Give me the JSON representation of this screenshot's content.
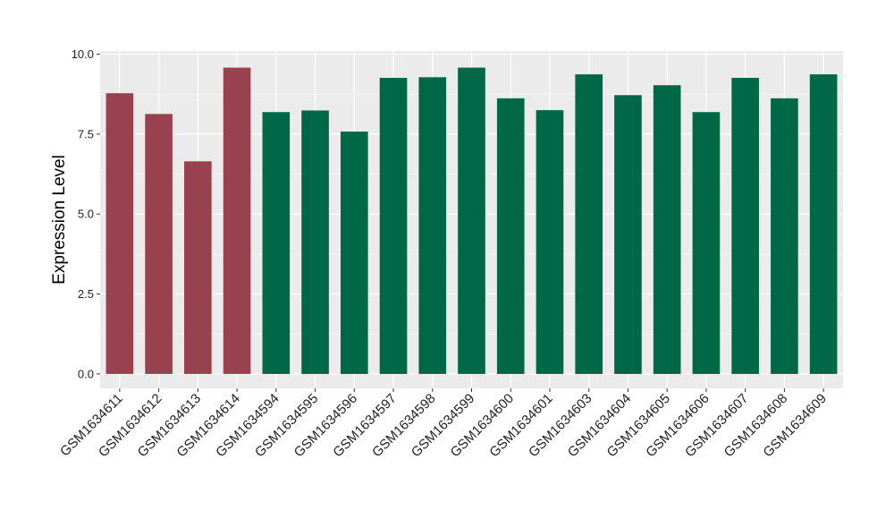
{
  "chart_data": {
    "type": "bar",
    "title": "",
    "xlabel": "",
    "ylabel": "Expression Level",
    "ylim": [
      -0.45,
      10.1
    ],
    "yticks": [
      0.0,
      2.5,
      5.0,
      7.5,
      10.0
    ],
    "ytick_labels": [
      "0.0",
      "2.5",
      "5.0",
      "7.5",
      "10.0"
    ],
    "grid": true,
    "legend": "none",
    "background_color": "#ebebeb",
    "categories": [
      "GSM1634611",
      "GSM1634612",
      "GSM1634613",
      "GSM1634614",
      "GSM1634594",
      "GSM1634595",
      "GSM1634596",
      "GSM1634597",
      "GSM1634598",
      "GSM1634599",
      "GSM1634600",
      "GSM1634601",
      "GSM1634603",
      "GSM1634604",
      "GSM1634605",
      "GSM1634606",
      "GSM1634607",
      "GSM1634608",
      "GSM1634609"
    ],
    "values": [
      8.78,
      8.13,
      6.65,
      9.58,
      8.19,
      8.24,
      7.58,
      9.26,
      9.28,
      9.58,
      8.62,
      8.25,
      9.37,
      8.72,
      9.03,
      8.19,
      9.26,
      8.62,
      9.37
    ],
    "groups": [
      1,
      1,
      1,
      1,
      2,
      2,
      2,
      2,
      2,
      2,
      2,
      2,
      2,
      2,
      2,
      2,
      2,
      2,
      2
    ],
    "group_colors": {
      "1": "#9a4150",
      "2": "#006747"
    }
  }
}
